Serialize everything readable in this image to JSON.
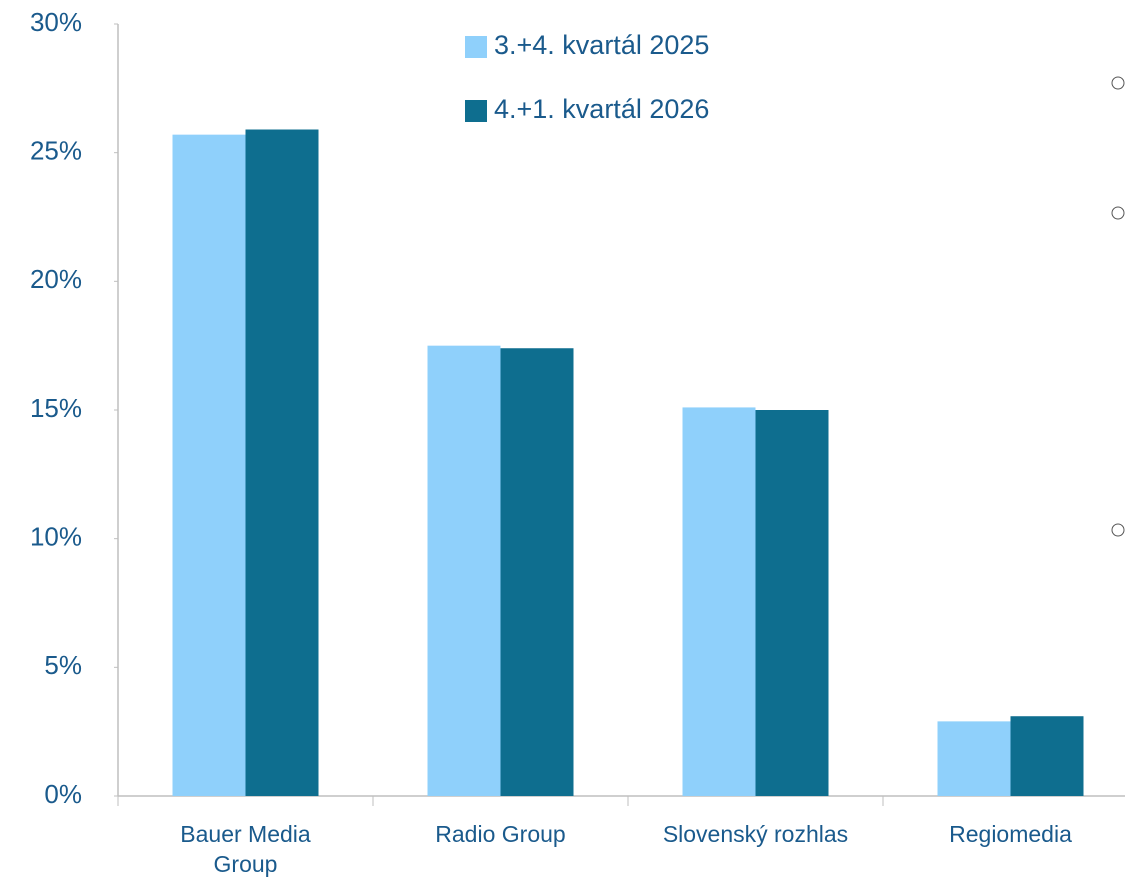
{
  "chart_data": {
    "type": "bar",
    "categories": [
      "Bauer Media\nGroup",
      "Radio Group",
      "Slovenský rozhlas",
      "Regiomedia"
    ],
    "series": [
      {
        "name": "3.+4. kvartál 2025",
        "color": "#8fd0fb",
        "values": [
          25.7,
          17.5,
          15.1,
          2.9
        ]
      },
      {
        "name": "4.+1. kvartál 2026",
        "color": "#0e6e8f",
        "values": [
          25.9,
          17.4,
          15.0,
          3.1
        ]
      }
    ],
    "ylim": [
      0,
      30
    ],
    "yticks": [
      {
        "value": 0,
        "label": "0%"
      },
      {
        "value": 5,
        "label": "5%"
      },
      {
        "value": 10,
        "label": "10%"
      },
      {
        "value": 15,
        "label": "15%"
      },
      {
        "value": 20,
        "label": "20%"
      },
      {
        "value": 25,
        "label": "25%"
      },
      {
        "value": 30,
        "label": "30%"
      }
    ],
    "grid": false
  }
}
